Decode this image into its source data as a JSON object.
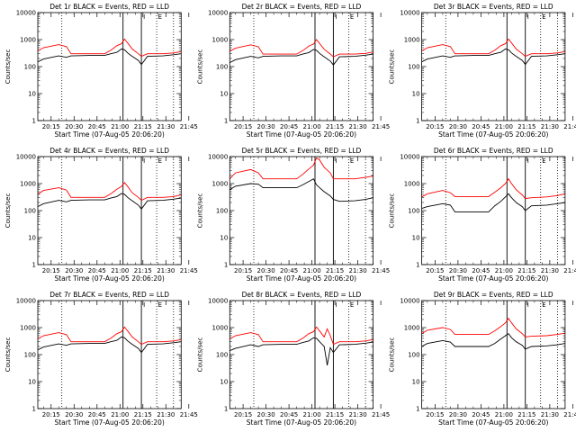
{
  "panel_common": {
    "ylabel": "Counts/sec",
    "xlabel": "Start Time (07-Aug-05 20:06:20)",
    "x_ticks": [
      "20:15",
      "20:30",
      "20:45",
      "21:00",
      "21:15",
      "21:30",
      "21:45"
    ],
    "y_ticks": [
      "1",
      "10",
      "100",
      "1000",
      "10000"
    ],
    "marker_labels": [
      "I",
      "E"
    ],
    "colors": {
      "events": "#000000",
      "lld": "#ff0000",
      "axis": "#000000"
    }
  },
  "chart_data": [
    {
      "type": "line",
      "title": "Det 1r BLACK = Events, RED = LLD",
      "xlabel": "Start Time (07-Aug-05 20:06:20)",
      "ylabel": "Counts/sec",
      "x_range_minutes": [
        6.3,
        100
      ],
      "ylim": [
        1,
        10000
      ],
      "y_scale": "log",
      "dotted_lines_minutes": [
        22,
        84,
        95
      ],
      "solid_lines_minutes": [
        62,
        74
      ],
      "series": [
        {
          "name": "Events",
          "color": "#000000",
          "x": [
            6.3,
            10,
            20,
            25,
            28,
            40,
            50,
            54,
            58,
            61,
            63,
            65,
            68,
            72,
            74,
            78,
            88,
            95,
            100
          ],
          "y": [
            150,
            190,
            250,
            220,
            250,
            260,
            260,
            300,
            340,
            450,
            420,
            320,
            240,
            170,
            120,
            240,
            250,
            275,
            300
          ]
        },
        {
          "name": "LLD",
          "color": "#ff0000",
          "x": [
            6.3,
            10,
            20,
            25,
            28,
            40,
            50,
            54,
            58,
            61,
            63,
            65,
            68,
            72,
            74,
            78,
            88,
            95,
            100
          ],
          "y": [
            380,
            500,
            650,
            550,
            300,
            300,
            300,
            400,
            600,
            700,
            1050,
            750,
            450,
            300,
            240,
            300,
            300,
            320,
            360
          ]
        }
      ]
    },
    {
      "type": "line",
      "title": "Det 2r BLACK = Events, RED = LLD",
      "xlabel": "Start Time (07-Aug-05 20:06:20)",
      "ylabel": "Counts/sec",
      "x_range_minutes": [
        6.3,
        100
      ],
      "ylim": [
        1,
        10000
      ],
      "y_scale": "log",
      "dotted_lines_minutes": [
        22,
        84,
        95
      ],
      "solid_lines_minutes": [
        62,
        74
      ],
      "series": [
        {
          "name": "Events",
          "color": "#000000",
          "x": [
            6.3,
            10,
            20,
            25,
            28,
            40,
            50,
            54,
            58,
            61,
            63,
            65,
            68,
            72,
            74,
            78,
            88,
            95,
            100
          ],
          "y": [
            140,
            180,
            240,
            210,
            240,
            250,
            250,
            290,
            330,
            430,
            400,
            310,
            230,
            160,
            115,
            230,
            240,
            265,
            290
          ]
        },
        {
          "name": "LLD",
          "color": "#ff0000",
          "x": [
            6.3,
            10,
            20,
            25,
            28,
            40,
            50,
            54,
            58,
            61,
            63,
            65,
            68,
            72,
            74,
            78,
            88,
            95,
            100
          ],
          "y": [
            370,
            480,
            640,
            540,
            290,
            290,
            290,
            390,
            580,
            680,
            1000,
            720,
            440,
            290,
            230,
            290,
            290,
            310,
            350
          ]
        }
      ]
    },
    {
      "type": "line",
      "title": "Det 3r BLACK = Events, RED = LLD",
      "xlabel": "Start Time (07-Aug-05 20:06:20)",
      "ylabel": "Counts/sec",
      "x_range_minutes": [
        6.3,
        100
      ],
      "ylim": [
        1,
        10000
      ],
      "y_scale": "log",
      "dotted_lines_minutes": [
        22,
        84,
        95
      ],
      "solid_lines_minutes": [
        62,
        74
      ],
      "series": [
        {
          "name": "Events",
          "color": "#000000",
          "x": [
            6.3,
            10,
            20,
            25,
            28,
            40,
            50,
            54,
            58,
            61,
            63,
            65,
            68,
            72,
            74,
            78,
            88,
            95,
            100
          ],
          "y": [
            150,
            190,
            250,
            220,
            250,
            260,
            260,
            300,
            340,
            450,
            420,
            320,
            240,
            170,
            120,
            240,
            250,
            275,
            300
          ]
        },
        {
          "name": "LLD",
          "color": "#ff0000",
          "x": [
            6.3,
            10,
            20,
            25,
            28,
            40,
            50,
            54,
            58,
            61,
            63,
            65,
            68,
            72,
            74,
            78,
            88,
            95,
            100
          ],
          "y": [
            380,
            500,
            650,
            550,
            300,
            300,
            300,
            400,
            600,
            700,
            1050,
            750,
            450,
            300,
            240,
            300,
            300,
            320,
            360
          ]
        }
      ]
    },
    {
      "type": "line",
      "title": "Det 4r BLACK = Events, RED = LLD",
      "xlabel": "Start Time (07-Aug-05 20:06:20)",
      "ylabel": "Counts/sec",
      "x_range_minutes": [
        6.3,
        100
      ],
      "ylim": [
        1,
        10000
      ],
      "y_scale": "log",
      "dotted_lines_minutes": [
        22,
        84,
        95
      ],
      "solid_lines_minutes": [
        62,
        74
      ],
      "series": [
        {
          "name": "Events",
          "color": "#000000",
          "x": [
            6.3,
            10,
            20,
            25,
            28,
            40,
            50,
            54,
            58,
            61,
            63,
            65,
            68,
            72,
            74,
            78,
            88,
            95,
            100
          ],
          "y": [
            140,
            180,
            240,
            210,
            240,
            250,
            250,
            290,
            330,
            430,
            400,
            310,
            230,
            160,
            115,
            230,
            240,
            265,
            290
          ]
        },
        {
          "name": "LLD",
          "color": "#ff0000",
          "x": [
            6.3,
            10,
            20,
            25,
            28,
            40,
            50,
            54,
            58,
            61,
            63,
            65,
            68,
            72,
            74,
            78,
            88,
            95,
            100
          ],
          "y": [
            400,
            560,
            700,
            580,
            310,
            310,
            310,
            420,
            620,
            780,
            1100,
            780,
            460,
            310,
            240,
            310,
            310,
            330,
            380
          ]
        }
      ]
    },
    {
      "type": "line",
      "title": "Det 5r BLACK = Events, RED = LLD",
      "xlabel": "Start Time (07-Aug-05 20:06:20)",
      "ylabel": "Counts/sec",
      "x_range_minutes": [
        6.3,
        100
      ],
      "ylim": [
        1,
        10000
      ],
      "y_scale": "log",
      "dotted_lines_minutes": [
        22,
        84,
        95
      ],
      "solid_lines_minutes": [
        62,
        74
      ],
      "series": [
        {
          "name": "Events",
          "color": "#000000",
          "x": [
            6.3,
            10,
            20,
            25,
            28,
            40,
            50,
            54,
            58,
            61,
            63,
            65,
            68,
            72,
            74,
            78,
            88,
            95,
            100
          ],
          "y": [
            600,
            800,
            1000,
            950,
            700,
            700,
            700,
            900,
            1200,
            1500,
            900,
            700,
            500,
            350,
            260,
            220,
            230,
            260,
            300
          ]
        },
        {
          "name": "LLD",
          "color": "#ff0000",
          "x": [
            6.3,
            10,
            20,
            25,
            28,
            40,
            50,
            54,
            58,
            61,
            63,
            65,
            68,
            72,
            74,
            78,
            88,
            95,
            100
          ],
          "y": [
            1500,
            2500,
            3300,
            2500,
            1500,
            1500,
            1500,
            2200,
            3500,
            4800,
            9000,
            7500,
            4000,
            2500,
            1500,
            1500,
            1500,
            1700,
            1900
          ]
        }
      ]
    },
    {
      "type": "line",
      "title": "Det 6r BLACK = Events, RED = LLD",
      "xlabel": "Start Time (07-Aug-05 20:06:20)",
      "ylabel": "Counts/sec",
      "x_range_minutes": [
        6.3,
        100
      ],
      "ylim": [
        1,
        10000
      ],
      "y_scale": "log",
      "dotted_lines_minutes": [
        22,
        84,
        95
      ],
      "solid_lines_minutes": [
        62,
        74
      ],
      "series": [
        {
          "name": "Events",
          "color": "#000000",
          "x": [
            6.3,
            10,
            20,
            25,
            28,
            40,
            50,
            54,
            58,
            61,
            63,
            65,
            68,
            72,
            74,
            78,
            88,
            95,
            100
          ],
          "y": [
            120,
            140,
            180,
            160,
            90,
            90,
            90,
            150,
            220,
            320,
            420,
            300,
            200,
            140,
            100,
            150,
            160,
            180,
            200
          ]
        },
        {
          "name": "LLD",
          "color": "#ff0000",
          "x": [
            6.3,
            10,
            20,
            25,
            28,
            40,
            50,
            54,
            58,
            61,
            63,
            65,
            68,
            72,
            74,
            78,
            88,
            95,
            100
          ],
          "y": [
            320,
            420,
            560,
            460,
            330,
            330,
            330,
            480,
            700,
            1000,
            1500,
            1000,
            600,
            380,
            280,
            300,
            320,
            360,
            420
          ]
        }
      ]
    },
    {
      "type": "line",
      "title": "Det 7r BLACK = Events, RED = LLD",
      "xlabel": "Start Time (07-Aug-05 20:06:20)",
      "ylabel": "Counts/sec",
      "x_range_minutes": [
        6.3,
        100
      ],
      "ylim": [
        1,
        10000
      ],
      "y_scale": "log",
      "dotted_lines_minutes": [
        22,
        84,
        95
      ],
      "solid_lines_minutes": [
        62,
        74
      ],
      "series": [
        {
          "name": "Events",
          "color": "#000000",
          "x": [
            6.3,
            10,
            20,
            25,
            28,
            40,
            50,
            54,
            58,
            61,
            63,
            65,
            68,
            72,
            74,
            78,
            88,
            95,
            100
          ],
          "y": [
            150,
            190,
            250,
            220,
            250,
            260,
            260,
            300,
            340,
            450,
            420,
            320,
            240,
            170,
            120,
            240,
            250,
            275,
            300
          ]
        },
        {
          "name": "LLD",
          "color": "#ff0000",
          "x": [
            6.3,
            10,
            20,
            25,
            28,
            40,
            50,
            54,
            58,
            61,
            63,
            65,
            68,
            72,
            74,
            78,
            88,
            95,
            100
          ],
          "y": [
            380,
            500,
            650,
            550,
            300,
            300,
            300,
            400,
            600,
            700,
            1050,
            750,
            450,
            300,
            240,
            300,
            300,
            320,
            360
          ]
        }
      ]
    },
    {
      "type": "line",
      "title": "Det 8r BLACK = Events, RED = LLD",
      "xlabel": "Start Time (07-Aug-05 20:06:20)",
      "ylabel": "Counts/sec",
      "x_range_minutes": [
        6.3,
        100
      ],
      "ylim": [
        1,
        10000
      ],
      "y_scale": "log",
      "dotted_lines_minutes": [
        22,
        84,
        95
      ],
      "solid_lines_minutes": [
        62,
        74
      ],
      "series": [
        {
          "name": "Events",
          "color": "#000000",
          "x": [
            6.3,
            10,
            20,
            25,
            28,
            40,
            50,
            54,
            58,
            61,
            63,
            65,
            68,
            70,
            72,
            74,
            78,
            88,
            95,
            100
          ],
          "y": [
            140,
            170,
            230,
            200,
            230,
            240,
            240,
            280,
            320,
            420,
            400,
            300,
            200,
            40,
            180,
            120,
            230,
            240,
            265,
            290
          ]
        },
        {
          "name": "LLD",
          "color": "#ff0000",
          "x": [
            6.3,
            10,
            20,
            25,
            28,
            40,
            50,
            54,
            58,
            61,
            63,
            65,
            68,
            70,
            72,
            74,
            78,
            88,
            95,
            100
          ],
          "y": [
            380,
            500,
            650,
            550,
            300,
            300,
            300,
            400,
            600,
            700,
            1050,
            750,
            450,
            900,
            500,
            240,
            300,
            300,
            320,
            360
          ]
        }
      ]
    },
    {
      "type": "line",
      "title": "Det 9r BLACK = Events, RED = LLD",
      "xlabel": "Start Time (07-Aug-05 20:06:20)",
      "ylabel": "Counts/sec",
      "x_range_minutes": [
        6.3,
        100
      ],
      "ylim": [
        1,
        10000
      ],
      "y_scale": "log",
      "dotted_lines_minutes": [
        22,
        84,
        95
      ],
      "solid_lines_minutes": [
        62,
        74
      ],
      "series": [
        {
          "name": "Events",
          "color": "#000000",
          "x": [
            6.3,
            10,
            20,
            25,
            28,
            40,
            50,
            54,
            58,
            61,
            63,
            65,
            68,
            72,
            74,
            78,
            88,
            95,
            100
          ],
          "y": [
            200,
            260,
            330,
            290,
            200,
            200,
            200,
            260,
            380,
            500,
            600,
            420,
            300,
            220,
            160,
            200,
            210,
            230,
            260
          ]
        },
        {
          "name": "LLD",
          "color": "#ff0000",
          "x": [
            6.3,
            10,
            20,
            25,
            28,
            40,
            50,
            54,
            58,
            61,
            63,
            65,
            68,
            72,
            74,
            78,
            88,
            95,
            100
          ],
          "y": [
            600,
            800,
            1000,
            850,
            560,
            560,
            560,
            760,
            1100,
            1500,
            2200,
            1500,
            900,
            600,
            450,
            480,
            500,
            560,
            620
          ]
        }
      ]
    }
  ]
}
